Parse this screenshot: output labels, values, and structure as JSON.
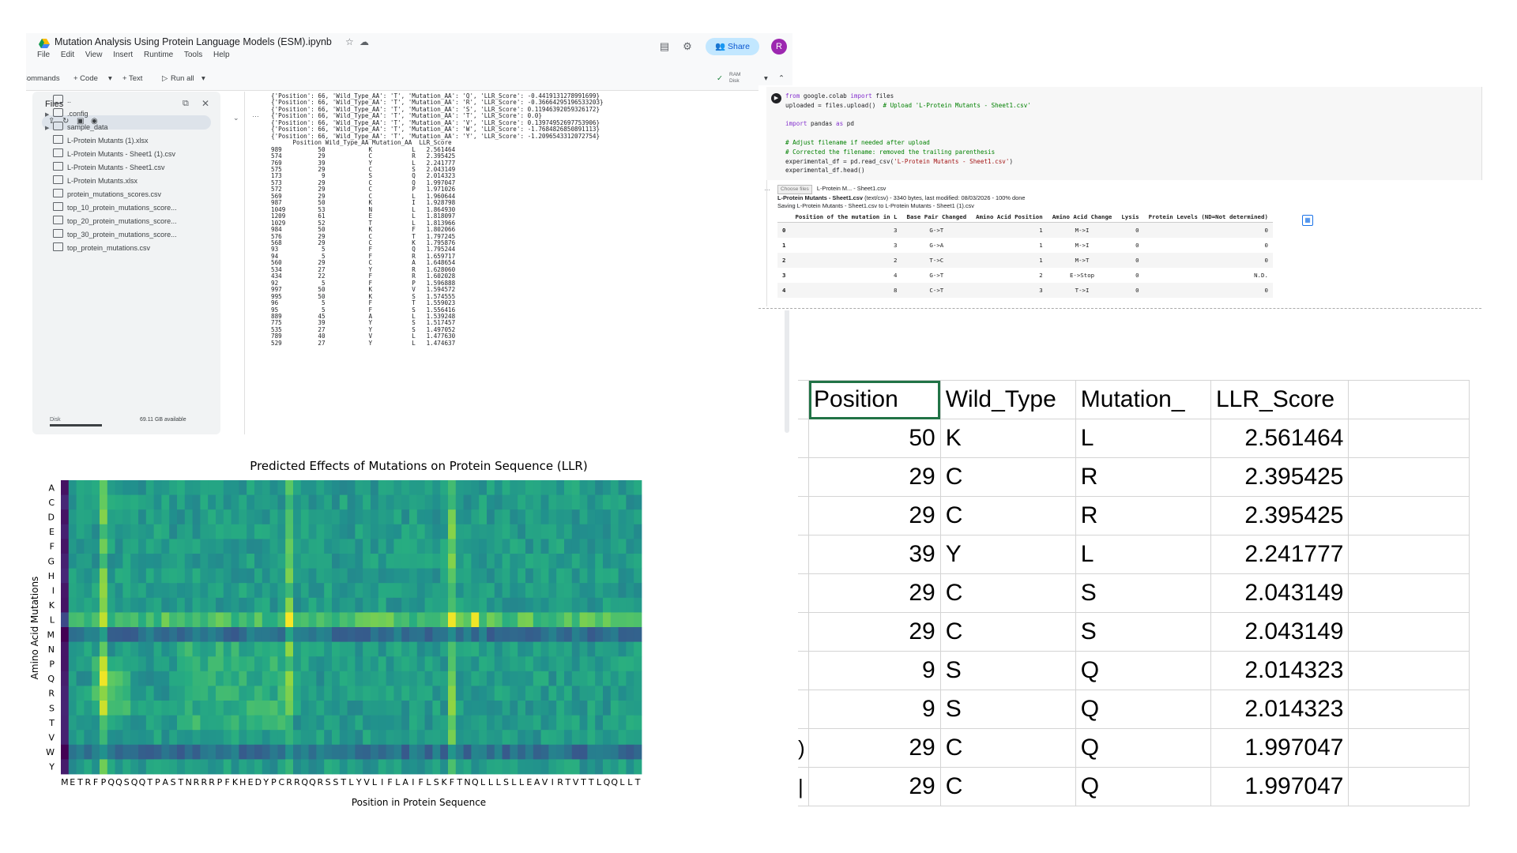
{
  "colab": {
    "title": "Mutation Analysis Using Protein Language Models (ESM).ipynb",
    "menu": [
      "File",
      "Edit",
      "View",
      "Insert",
      "Runtime",
      "Tools",
      "Help"
    ],
    "share_label": "Share",
    "avatar_letter": "R",
    "toolbar": {
      "commands": "Commands",
      "add_code": "+ Code",
      "add_text": "+ Text",
      "run_all": "Run all",
      "ram": "RAM",
      "disk": "Disk"
    },
    "files_panel": {
      "title": "Files",
      "items": [
        {
          "name": "..",
          "type": "folder",
          "expandable": false
        },
        {
          "name": ".config",
          "type": "folder",
          "expandable": true
        },
        {
          "name": "sample_data",
          "type": "folder",
          "expandable": true
        },
        {
          "name": "L-Protein Mutants (1).xlsx",
          "type": "file"
        },
        {
          "name": "L-Protein Mutants - Sheet1 (1).csv",
          "type": "file"
        },
        {
          "name": "L-Protein Mutants - Sheet1.csv",
          "type": "file"
        },
        {
          "name": "L-Protein Mutants.xlsx",
          "type": "file"
        },
        {
          "name": "protein_mutations_scores.csv",
          "type": "file"
        },
        {
          "name": "top_10_protein_mutations_score...",
          "type": "file"
        },
        {
          "name": "top_20_protein_mutations_score...",
          "type": "file"
        },
        {
          "name": "top_30_protein_mutations_score...",
          "type": "file"
        },
        {
          "name": "top_protein_mutations.csv",
          "type": "file"
        }
      ],
      "disk_label": "Disk",
      "disk_available": "69.11 GB available"
    },
    "output_lines": [
      "{'Position': 66, 'Wild_Type_AA': 'T', 'Mutation_AA': 'Q', 'LLR_Score': -0.4419131278991699}",
      "{'Position': 66, 'Wild_Type_AA': 'T', 'Mutation_AA': 'R', 'LLR_Score': -0.36664295196533203}",
      "{'Position': 66, 'Wild_Type_AA': 'T', 'Mutation_AA': 'S', 'LLR_Score': 0.11946392059326172}",
      "{'Position': 66, 'Wild_Type_AA': 'T', 'Mutation_AA': 'T', 'LLR_Score': 0.0}",
      "{'Position': 66, 'Wild_Type_AA': 'T', 'Mutation_AA': 'V', 'LLR_Score': 0.13974952697753906}",
      "{'Position': 66, 'Wild_Type_AA': 'T', 'Mutation_AA': 'W', 'LLR_Score': -1.7684826850891113}",
      "{'Position': 66, 'Wild_Type_AA': 'T', 'Mutation_AA': 'Y', 'LLR_Score': -1.2096543312072754}",
      "      Position Wild_Type_AA Mutation_AA  LLR_Score",
      "989          50            K           L   2.561464",
      "574          29            C           R   2.395425",
      "769          39            Y           L   2.241777",
      "575          29            C           S   2.043149",
      "173           9            S           Q   2.014323",
      "573          29            C           Q   1.997047",
      "572          29            C           P   1.971026",
      "569          29            C           L   1.960644",
      "987          50            K           I   1.928798",
      "1049         53            N           L   1.864930",
      "1209         61            E           L   1.818097",
      "1029         52            T           L   1.813966",
      "984          50            K           F   1.802066",
      "576          29            C           T   1.797245",
      "568          29            C           K   1.795876",
      "93            5            F           Q   1.795244",
      "94            5            F           R   1.659717",
      "560          29            C           A   1.648654",
      "534          27            Y           R   1.628060",
      "434          22            F           R   1.602028",
      "92            5            F           P   1.596888",
      "997          50            K           V   1.594572",
      "995          50            K           S   1.574555",
      "96            5            F           T   1.559023",
      "95            5            F           S   1.556416",
      "889          45            A           L   1.539248",
      "775          39            Y           S   1.517457",
      "535          27            Y           S   1.497052",
      "789          40            V           L   1.477630",
      "529          27            Y           L   1.474637"
    ]
  },
  "notebook2": {
    "code_lines": [
      {
        "kw": "from",
        "rest": " google.colab ",
        "kw2": "import",
        "rest2": " files"
      },
      {
        "plain": "uploaded = files.upload()  ",
        "cm": "# Upload 'L-Protein Mutants - Sheet1.csv'"
      },
      {
        "plain": ""
      },
      {
        "kw": "import",
        "rest": " pandas ",
        "kw2": "as",
        "rest2": " pd"
      },
      {
        "plain": ""
      },
      {
        "cm": "# Adjust filename if needed after upload"
      },
      {
        "cm": "# Corrected the filename: removed the trailing parenthesis"
      },
      {
        "plain": "experimental_df = pd.read_csv(",
        "st": "'L-Protein Mutants - Sheet1.csv'",
        "plain2": ")"
      },
      {
        "plain": "experimental_df.head()"
      }
    ],
    "choose_files": "Choose files",
    "chosen_file": "L-Protein M... - Sheet1.csv",
    "upload_status_name": "L-Protein Mutants - Sheet1.csv",
    "upload_status_rest": "(text/csv) - 3340 bytes, last modified: 08/03/2026 - 100% done",
    "saving_line": "Saving L-Protein Mutants - Sheet1.csv to L-Protein Mutants - Sheet1 (1).csv",
    "df_columns": [
      "",
      "Position of the mutation in L",
      "Base Pair Changed",
      "Amino Acid Position",
      "Amino Acid Change",
      "Lysis",
      "Protein Levels (ND=Not determined)"
    ],
    "df_rows": [
      [
        "0",
        "3",
        "G->T",
        "1",
        "M->I",
        "0",
        "0"
      ],
      [
        "1",
        "3",
        "G->A",
        "1",
        "M->I",
        "0",
        "0"
      ],
      [
        "2",
        "2",
        "T->C",
        "1",
        "M->T",
        "0",
        "0"
      ],
      [
        "3",
        "4",
        "G->T",
        "2",
        "E->Stop",
        "0",
        "N.D."
      ],
      [
        "4",
        "8",
        "C->T",
        "3",
        "T->I",
        "0",
        "0"
      ]
    ]
  },
  "chart_data": {
    "type": "heatmap",
    "title": "Predicted Effects of Mutations on Protein Sequence (LLR)",
    "xlabel": "Position in Protein Sequence",
    "ylabel": "Amino Acid Mutations",
    "y_categories": [
      "A",
      "C",
      "D",
      "E",
      "F",
      "G",
      "H",
      "I",
      "K",
      "L",
      "M",
      "N",
      "P",
      "Q",
      "R",
      "S",
      "T",
      "V",
      "W",
      "Y"
    ],
    "x_categories": [
      "M",
      "E",
      "T",
      "R",
      "F",
      "P",
      "Q",
      "Q",
      "S",
      "Q",
      "Q",
      "T",
      "P",
      "A",
      "S",
      "T",
      "N",
      "R",
      "R",
      "R",
      "P",
      "F",
      "K",
      "H",
      "E",
      "D",
      "Y",
      "P",
      "C",
      "R",
      "R",
      "Q",
      "Q",
      "R",
      "S",
      "S",
      "T",
      "L",
      "Y",
      "V",
      "L",
      "I",
      "F",
      "L",
      "A",
      "I",
      "F",
      "L",
      "S",
      "K",
      "F",
      "T",
      "N",
      "Q",
      "L",
      "L",
      "L",
      "S",
      "L",
      "L",
      "E",
      "A",
      "V",
      "I",
      "R",
      "T",
      "V",
      "T",
      "T",
      "L",
      "Q",
      "Q",
      "L",
      "L",
      "T"
    ],
    "colormap": "viridis",
    "highlight_columns": [
      5,
      29,
      50
    ],
    "highlight_rows": [
      "L"
    ],
    "low_rows": [
      "M",
      "W"
    ],
    "peak_cells": [
      {
        "x": 5,
        "y": "Q"
      },
      {
        "x": 50,
        "y": "L"
      },
      {
        "x": 53,
        "y": "L"
      }
    ]
  },
  "spreadsheet": {
    "headers": [
      "Position",
      "Wild_Type",
      "Mutation_",
      "LLR_Score"
    ],
    "row_markers": [
      "",
      "",
      "",
      "",
      "",
      "",
      "",
      "",
      "",
      ")",
      "|"
    ],
    "rows": [
      [
        "50",
        "K",
        "L",
        "2.561464"
      ],
      [
        "29",
        "C",
        "R",
        "2.395425"
      ],
      [
        "29",
        "C",
        "R",
        "2.395425"
      ],
      [
        "39",
        "Y",
        "L",
        "2.241777"
      ],
      [
        "29",
        "C",
        "S",
        "2.043149"
      ],
      [
        "29",
        "C",
        "S",
        "2.043149"
      ],
      [
        "9",
        "S",
        "Q",
        "2.014323"
      ],
      [
        "9",
        "S",
        "Q",
        "2.014323"
      ],
      [
        "29",
        "C",
        "Q",
        "1.997047"
      ],
      [
        "29",
        "C",
        "Q",
        "1.997047"
      ]
    ]
  }
}
